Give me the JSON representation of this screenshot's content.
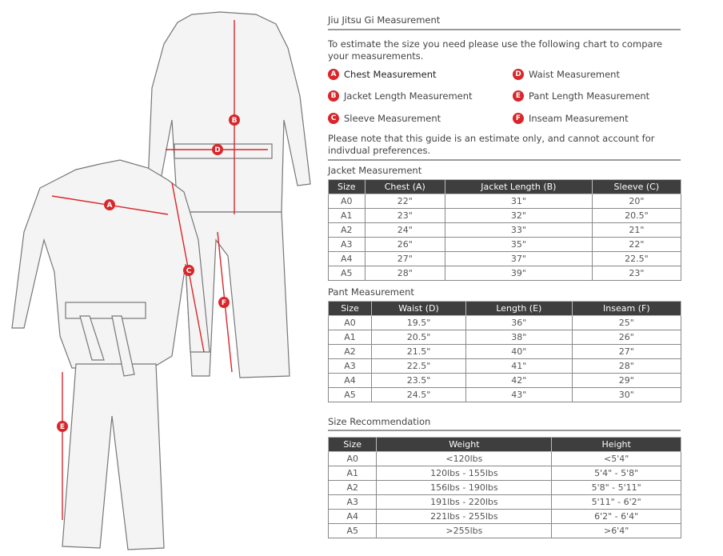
{
  "title": "Jiu Jitsu Gi Measurement",
  "intro": "To estimate the size you need please use the following chart to compare your measurements.",
  "legend": [
    {
      "letter": "A",
      "label": "Chest Measurement"
    },
    {
      "letter": "B",
      "label": "Jacket Length Measurement"
    },
    {
      "letter": "C",
      "label": "Sleeve Measurement"
    },
    {
      "letter": "D",
      "label": "Waist Measurement"
    },
    {
      "letter": "E",
      "label": "Pant Length Measurement"
    },
    {
      "letter": "F",
      "label": "Inseam Measurement"
    }
  ],
  "note": "Please note that this guide is an estimate only, and cannot account for indivdual preferences.",
  "accent": "#d9262b",
  "jacket": {
    "title": "Jacket Measurement",
    "headers": [
      "Size",
      "Chest (A)",
      "Jacket Length (B)",
      "Sleeve (C)"
    ],
    "rows": [
      [
        "A0",
        "22\"",
        "31\"",
        "20\""
      ],
      [
        "A1",
        "23\"",
        "32\"",
        "20.5\""
      ],
      [
        "A2",
        "24\"",
        "33\"",
        "21\""
      ],
      [
        "A3",
        "26\"",
        "35\"",
        "22\""
      ],
      [
        "A4",
        "27\"",
        "37\"",
        "22.5\""
      ],
      [
        "A5",
        "28\"",
        "39\"",
        "23\""
      ]
    ]
  },
  "pant": {
    "title": "Pant Measurement",
    "headers": [
      "Size",
      "Waist (D)",
      "Length (E)",
      "Inseam (F)"
    ],
    "rows": [
      [
        "A0",
        "19.5\"",
        "36\"",
        "25\""
      ],
      [
        "A1",
        "20.5\"",
        "38\"",
        "26\""
      ],
      [
        "A2",
        "21.5\"",
        "40\"",
        "27\""
      ],
      [
        "A3",
        "22.5\"",
        "41\"",
        "28\""
      ],
      [
        "A4",
        "23.5\"",
        "42\"",
        "29\""
      ],
      [
        "A5",
        "24.5\"",
        "43\"",
        "30\""
      ]
    ]
  },
  "size": {
    "title": "Size Recommendation",
    "headers": [
      "Size",
      "Weight",
      "Height"
    ],
    "rows": [
      [
        "A0",
        "<120lbs",
        "<5'4\""
      ],
      [
        "A1",
        "120lbs - 155lbs",
        "5'4\" - 5'8\""
      ],
      [
        "A2",
        "156lbs - 190lbs",
        "5'8\" - 5'11\""
      ],
      [
        "A3",
        "191lbs - 220lbs",
        "5'11\" - 6'2\""
      ],
      [
        "A4",
        "221lbs - 255lbs",
        "6'2\" - 6'4\""
      ],
      [
        "A5",
        ">255lbs",
        ">6'4\""
      ]
    ]
  }
}
